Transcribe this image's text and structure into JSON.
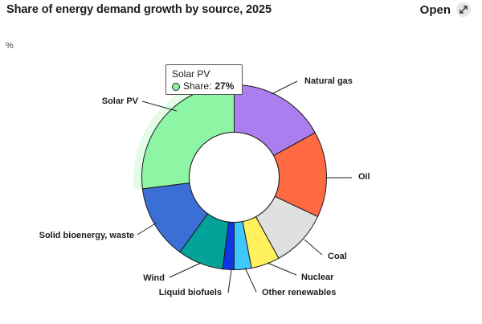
{
  "header": {
    "title": "Share of energy demand growth by source, 2025",
    "open_label": "Open",
    "open_icon": "expand-arrows-icon"
  },
  "chart_data": {
    "type": "pie",
    "variant": "donut",
    "unit_label": "%",
    "slices": [
      {
        "label": "Natural gas",
        "value": 17,
        "color": "#ab7ef0"
      },
      {
        "label": "Oil",
        "value": 15,
        "color": "#ff6a42"
      },
      {
        "label": "Coal",
        "value": 10,
        "color": "#e0e0e0"
      },
      {
        "label": "Nuclear",
        "value": 5,
        "color": "#fff15c"
      },
      {
        "label": "Other renewables",
        "value": 3,
        "color": "#3fc8ff"
      },
      {
        "label": "Liquid biofuels",
        "value": 2,
        "color": "#0f36e6"
      },
      {
        "label": "Wind",
        "value": 8,
        "color": "#04a399"
      },
      {
        "label": "Solid bioenergy, waste",
        "value": 13,
        "color": "#3c6fd6"
      },
      {
        "label": "Solar PV",
        "value": 27,
        "color": "#8df5a4",
        "highlighted": true
      }
    ],
    "tooltip": {
      "series": "Solar PV",
      "metric_label": "Share:",
      "value_text": "27%"
    }
  }
}
